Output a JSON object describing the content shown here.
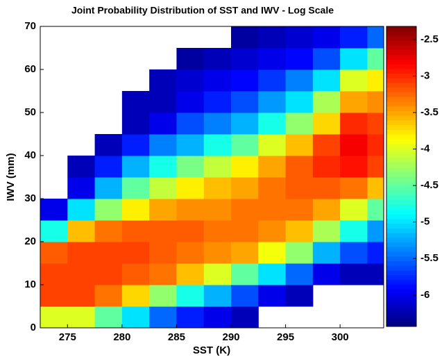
{
  "chart_data": {
    "type": "heatmap",
    "title": "Joint Probability Distribution of SST and  IWV - Log Scale",
    "x_label": "SST (K)",
    "y_label": "IWV (mm)",
    "colormap": "jet",
    "xlim": [
      272.5,
      304
    ],
    "ylim": [
      0,
      70
    ],
    "xticks": [
      275,
      280,
      285,
      290,
      295,
      300
    ],
    "yticks": [
      0,
      10,
      20,
      30,
      40,
      50,
      60,
      70
    ],
    "x_edges": [
      272.5,
      275,
      277.5,
      280,
      282.5,
      285,
      287.5,
      290,
      292.5,
      295,
      297.5,
      300,
      302.5,
      304
    ],
    "y_edges": [
      0,
      5,
      10,
      15,
      20,
      25,
      30,
      35,
      40,
      45,
      50,
      55,
      60,
      65,
      70
    ],
    "z": [
      [
        -4,
        -4,
        -4.5,
        -5,
        -5.5,
        -5.8,
        -6,
        -6.2,
        null,
        null,
        null,
        null,
        null
      ],
      [
        -3.1,
        -3.1,
        -3.3,
        -3.7,
        -4.3,
        -4.8,
        -5.2,
        -5.6,
        -6,
        -6.2,
        null,
        null,
        null
      ],
      [
        -3.1,
        -3.1,
        -3.1,
        -3.2,
        -3.3,
        -3.6,
        -4,
        -4.5,
        -5,
        -5.5,
        -6,
        -6.2,
        -6.2
      ],
      [
        -3.2,
        -3.1,
        -3.1,
        -3.1,
        -3.2,
        -3.3,
        -3.4,
        -3.5,
        -3.9,
        -4.3,
        -5.2,
        -5.6,
        -5.8
      ],
      [
        -4.8,
        -3.6,
        -3.3,
        -3.2,
        -3.2,
        -3.2,
        -3.3,
        -3.3,
        -3.4,
        -3.6,
        -4.2,
        -4.8,
        -5.3
      ],
      [
        -6,
        -5,
        -4.3,
        -3.8,
        -3.5,
        -3.4,
        -3.4,
        -3.3,
        -3.3,
        -3.3,
        -3.5,
        -4,
        -4.5
      ],
      [
        null,
        -6,
        -5.2,
        -4.5,
        -4.1,
        -3.8,
        -3.6,
        -3.5,
        -3.3,
        -3.2,
        -3.2,
        -3.3,
        -3.6
      ],
      [
        null,
        -6.2,
        -5.8,
        -5.2,
        -4.8,
        -4.4,
        -4.1,
        -3.8,
        -3.5,
        -3.2,
        -3,
        -2.9,
        -3.1
      ],
      [
        null,
        null,
        -6.2,
        -5.8,
        -5.4,
        -5.2,
        -4.8,
        -4.5,
        -4,
        -3.6,
        -3.1,
        -2.8,
        -3
      ],
      [
        null,
        null,
        null,
        -6.2,
        -6,
        -5.6,
        -5.4,
        -5.2,
        -4.8,
        -4.3,
        -3.7,
        -3,
        -3.1
      ],
      [
        null,
        null,
        null,
        -6.2,
        -6.2,
        -6,
        -5.8,
        -5.6,
        -5.3,
        -5,
        -4.2,
        -3.5,
        -3.4
      ],
      [
        null,
        null,
        null,
        null,
        -6.2,
        -6.1,
        -6,
        -5.9,
        -5.7,
        -5.4,
        -5,
        -4,
        -3.8
      ],
      [
        null,
        null,
        null,
        null,
        null,
        -6.3,
        -6.2,
        -6.1,
        -6,
        -5.9,
        -5.6,
        -5,
        -4.5
      ],
      [
        null,
        null,
        null,
        null,
        null,
        null,
        null,
        -6.3,
        -6.2,
        -6.1,
        -6,
        -5.8,
        -5.5
      ]
    ],
    "colorbar": {
      "lim": [
        -6.43,
        -2.32
      ],
      "ticks": [
        -2.5,
        -3,
        -3.5,
        -4,
        -4.5,
        -5,
        -5.5,
        -6
      ]
    }
  }
}
